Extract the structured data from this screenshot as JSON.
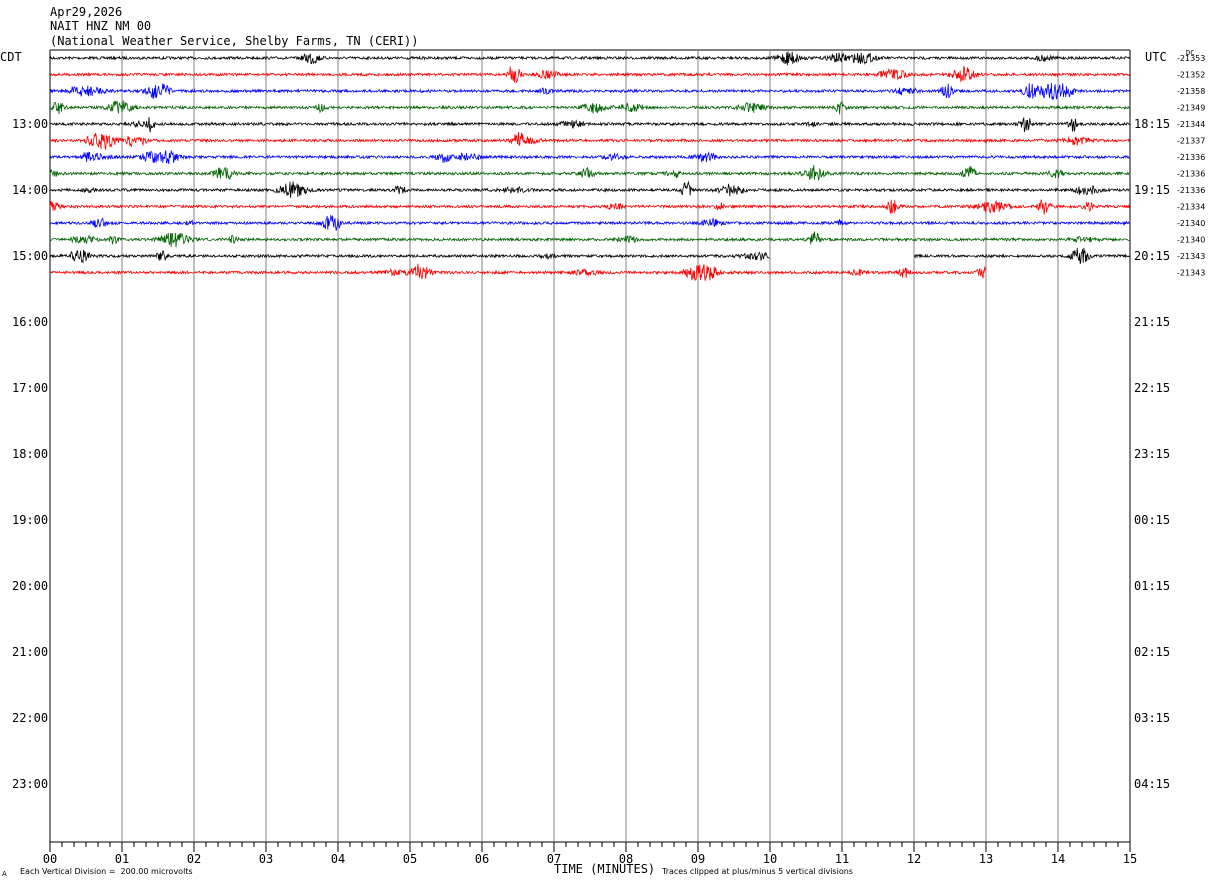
{
  "header": {
    "date": "Apr29,2026",
    "station": "NAIT HNZ NM 00",
    "location": "(National Weather Service, Shelby Farms, TN (CERI))"
  },
  "labels": {
    "left_zone": "CDT",
    "right_zone": "UTC",
    "dc": "DC",
    "xlabel": "TIME (MINUTES)",
    "footer_left": "Each Vertical Division =  200.00 microvolts",
    "footer_right": "Traces clipped at plus/minus 5 vertical divisions",
    "footer_mark": "A"
  },
  "chart_data": {
    "type": "line",
    "xlabel": "TIME (MINUTES)",
    "xlim": [
      0,
      15
    ],
    "x_ticks": [
      "00",
      "01",
      "02",
      "03",
      "04",
      "05",
      "06",
      "07",
      "08",
      "09",
      "10",
      "11",
      "12",
      "13",
      "14",
      "15"
    ],
    "left_hour_labels": [
      "13:00",
      "14:00",
      "15:00",
      "16:00",
      "17:00",
      "18:00",
      "19:00",
      "20:00",
      "21:00",
      "22:00",
      "23:00"
    ],
    "right_hour_labels": [
      "18:15",
      "19:15",
      "20:15",
      "21:15",
      "22:15",
      "23:15",
      "00:15",
      "01:15",
      "02:15",
      "03:15",
      "04:15"
    ],
    "trace_colors": [
      "#000000",
      "#ff0000",
      "#0000ff",
      "#006400"
    ],
    "traces": [
      {
        "row": 0,
        "color": "#000000",
        "dc": "-21353",
        "start_min": 0,
        "end_min": 15
      },
      {
        "row": 1,
        "color": "#ff0000",
        "dc": "-21352",
        "start_min": 0,
        "end_min": 15
      },
      {
        "row": 2,
        "color": "#0000ff",
        "dc": "-21358",
        "start_min": 0,
        "end_min": 15
      },
      {
        "row": 3,
        "color": "#006400",
        "dc": "-21349",
        "start_min": 0,
        "end_min": 15
      },
      {
        "row": 4,
        "color": "#000000",
        "dc": "-21344",
        "start_min": 0,
        "end_min": 15
      },
      {
        "row": 5,
        "color": "#ff0000",
        "dc": "-21337",
        "start_min": 0,
        "end_min": 15
      },
      {
        "row": 6,
        "color": "#0000ff",
        "dc": "-21336",
        "start_min": 0,
        "end_min": 15
      },
      {
        "row": 7,
        "color": "#006400",
        "dc": "-21336",
        "start_min": 0,
        "end_min": 15
      },
      {
        "row": 8,
        "color": "#000000",
        "dc": "-21336",
        "start_min": 0,
        "end_min": 15
      },
      {
        "row": 9,
        "color": "#ff0000",
        "dc": "-21334",
        "start_min": 0,
        "end_min": 15
      },
      {
        "row": 10,
        "color": "#0000ff",
        "dc": "-21340",
        "start_min": 0,
        "end_min": 15
      },
      {
        "row": 11,
        "color": "#006400",
        "dc": "-21340",
        "start_min": 0,
        "end_min": 15
      },
      {
        "row": 12,
        "color": "#000000",
        "dc": "-21343",
        "start_min": 0,
        "end_min": 15,
        "gap": [
          10,
          12
        ]
      },
      {
        "row": 13,
        "color": "#ff0000",
        "dc": "-21343",
        "start_min": 0,
        "end_min": 13
      }
    ],
    "grid": true
  }
}
